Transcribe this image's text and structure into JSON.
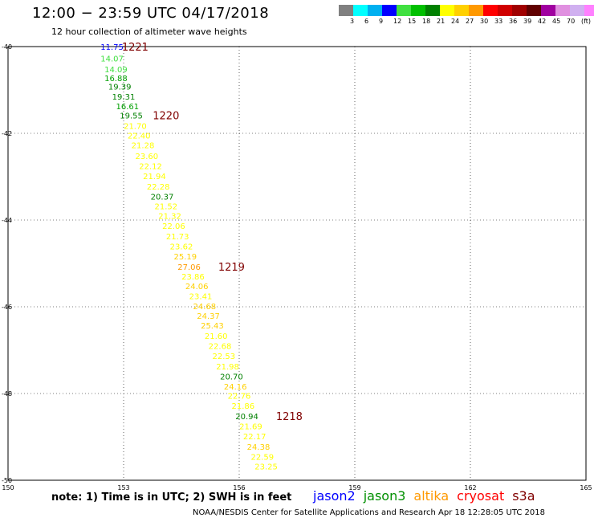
{
  "header": {
    "title": "12:00 − 23:59 UTC 04/17/2018",
    "subtitle": "12 hour collection of altimeter wave heights"
  },
  "scale": {
    "colors": [
      "#808080",
      "#00ffff",
      "#00b0f0",
      "#0000ff",
      "#40e040",
      "#00c000",
      "#008000",
      "#ffff00",
      "#ffd000",
      "#ff9900",
      "#ff0000",
      "#d00000",
      "#a00000",
      "#600000",
      "#a000a0",
      "#e090e0",
      "#d0b0f0",
      "#ff80ff",
      "#000000"
    ],
    "labels": [
      "3",
      "6",
      "9",
      "12",
      "15",
      "18",
      "21",
      "24",
      "27",
      "30",
      "33",
      "36",
      "39",
      "42",
      "45",
      "70",
      "(ft)"
    ]
  },
  "chart_data": {
    "type": "scatter",
    "title": "12:00 − 23:59 UTC 04/17/2018",
    "subtitle": "12 hour collection of altimeter wave heights",
    "xlim": [
      150,
      165
    ],
    "ylim": [
      -40,
      -50
    ],
    "x_ticks": [
      "150",
      "153",
      "156",
      "159",
      "162",
      "165"
    ],
    "y_ticks": [
      "-40",
      "-42",
      "-44",
      "-46",
      "-48",
      "-50"
    ],
    "units": "ft",
    "points": [
      {
        "lon": 152.7,
        "lat": -40.0,
        "value": "11.75",
        "color": "#0000ff"
      },
      {
        "lon": 152.7,
        "lat": -40.27,
        "value": "14.07",
        "color": "#40e040"
      },
      {
        "lon": 152.8,
        "lat": -40.52,
        "value": "14.09",
        "color": "#40e040"
      },
      {
        "lon": 152.8,
        "lat": -40.72,
        "value": "16.88",
        "color": "#00a000"
      },
      {
        "lon": 152.9,
        "lat": -40.92,
        "value": "19.39",
        "color": "#008000"
      },
      {
        "lon": 153.0,
        "lat": -41.15,
        "value": "19.31",
        "color": "#008000"
      },
      {
        "lon": 153.1,
        "lat": -41.37,
        "value": "16.61",
        "color": "#00a000"
      },
      {
        "lon": 153.2,
        "lat": -41.58,
        "value": "19.55",
        "color": "#008000"
      },
      {
        "lon": 153.3,
        "lat": -41.82,
        "value": "21.70",
        "color": "#ffff00"
      },
      {
        "lon": 153.4,
        "lat": -42.05,
        "value": "22.40",
        "color": "#ffff00"
      },
      {
        "lon": 153.5,
        "lat": -42.27,
        "value": "21.28",
        "color": "#ffff00"
      },
      {
        "lon": 153.6,
        "lat": -42.52,
        "value": "23.60",
        "color": "#ffff00"
      },
      {
        "lon": 153.7,
        "lat": -42.75,
        "value": "22.12",
        "color": "#ffff00"
      },
      {
        "lon": 153.8,
        "lat": -42.98,
        "value": "21.94",
        "color": "#ffff00"
      },
      {
        "lon": 153.9,
        "lat": -43.22,
        "value": "22.28",
        "color": "#ffff00"
      },
      {
        "lon": 154.0,
        "lat": -43.45,
        "value": "20.37",
        "color": "#008000"
      },
      {
        "lon": 154.1,
        "lat": -43.68,
        "value": "21.52",
        "color": "#ffff00"
      },
      {
        "lon": 154.2,
        "lat": -43.9,
        "value": "21.32",
        "color": "#ffff00"
      },
      {
        "lon": 154.3,
        "lat": -44.13,
        "value": "22.06",
        "color": "#ffff00"
      },
      {
        "lon": 154.4,
        "lat": -44.37,
        "value": "21.73",
        "color": "#ffff00"
      },
      {
        "lon": 154.5,
        "lat": -44.6,
        "value": "23.62",
        "color": "#ffff00"
      },
      {
        "lon": 154.6,
        "lat": -44.83,
        "value": "25.19",
        "color": "#ffd000"
      },
      {
        "lon": 154.7,
        "lat": -45.07,
        "value": "27.06",
        "color": "#ff9900"
      },
      {
        "lon": 154.8,
        "lat": -45.3,
        "value": "23.86",
        "color": "#ffff00"
      },
      {
        "lon": 154.9,
        "lat": -45.52,
        "value": "24.06",
        "color": "#ffd000"
      },
      {
        "lon": 155.0,
        "lat": -45.75,
        "value": "23.41",
        "color": "#ffff00"
      },
      {
        "lon": 155.1,
        "lat": -45.98,
        "value": "24.68",
        "color": "#ffd000"
      },
      {
        "lon": 155.2,
        "lat": -46.2,
        "value": "24.37",
        "color": "#ffd000"
      },
      {
        "lon": 155.3,
        "lat": -46.43,
        "value": "25.43",
        "color": "#ffd000"
      },
      {
        "lon": 155.4,
        "lat": -46.67,
        "value": "21.60",
        "color": "#ffff00"
      },
      {
        "lon": 155.5,
        "lat": -46.9,
        "value": "22.68",
        "color": "#ffff00"
      },
      {
        "lon": 155.6,
        "lat": -47.13,
        "value": "22.53",
        "color": "#ffff00"
      },
      {
        "lon": 155.7,
        "lat": -47.37,
        "value": "21.98",
        "color": "#ffff00"
      },
      {
        "lon": 155.8,
        "lat": -47.6,
        "value": "20.70",
        "color": "#008000"
      },
      {
        "lon": 155.9,
        "lat": -47.83,
        "value": "24.16",
        "color": "#ffd000"
      },
      {
        "lon": 156.0,
        "lat": -48.05,
        "value": "22.76",
        "color": "#ffff00"
      },
      {
        "lon": 156.1,
        "lat": -48.28,
        "value": "21.86",
        "color": "#ffff00"
      },
      {
        "lon": 156.2,
        "lat": -48.52,
        "value": "20.94",
        "color": "#008000"
      },
      {
        "lon": 156.3,
        "lat": -48.75,
        "value": "21.69",
        "color": "#ffff00"
      },
      {
        "lon": 156.4,
        "lat": -48.98,
        "value": "22.17",
        "color": "#ffff00"
      },
      {
        "lon": 156.5,
        "lat": -49.22,
        "value": "24.38",
        "color": "#ffd000"
      },
      {
        "lon": 156.6,
        "lat": -49.45,
        "value": "22.59",
        "color": "#ffff00"
      },
      {
        "lon": 156.7,
        "lat": -49.68,
        "value": "23.25",
        "color": "#ffff00"
      }
    ],
    "time_labels": [
      {
        "lon": 153.3,
        "lat": -40.0,
        "text": "1221"
      },
      {
        "lon": 154.1,
        "lat": -41.58,
        "text": "1220"
      },
      {
        "lon": 155.8,
        "lat": -45.07,
        "text": "1219"
      },
      {
        "lon": 157.3,
        "lat": -48.52,
        "text": "1218"
      }
    ]
  },
  "note": "note:  1) Time is in UTC;  2) SWH is in feet",
  "satellites": [
    {
      "name": "jason2",
      "color": "#0000ff"
    },
    {
      "name": "jason3",
      "color": "#009000"
    },
    {
      "name": "altika",
      "color": "#ff9900"
    },
    {
      "name": "cryosat",
      "color": "#ff0000"
    },
    {
      "name": "s3a",
      "color": "#800000"
    }
  ],
  "footer": "NOAA/NESDIS Center for Satellite Applications and Research     Apr 18 12:28:05 UTC 2018"
}
